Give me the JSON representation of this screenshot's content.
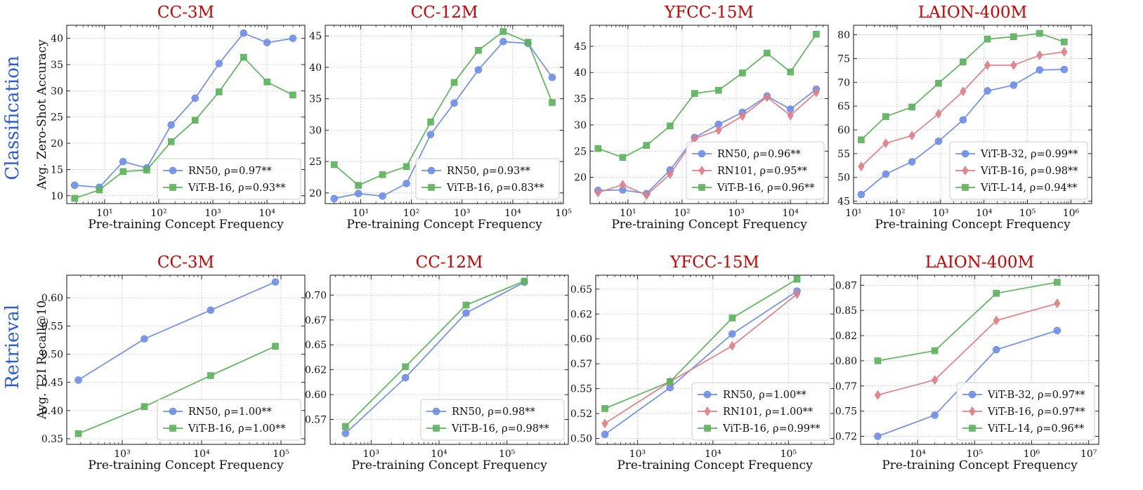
{
  "row_labels": [
    "Classification",
    "Retrieval"
  ],
  "legend_template": "{name}, ρ={rho}",
  "colors": {
    "RN50": "#6f8fe8",
    "RN101": "#df7f85",
    "ViT-B-16": "#5db35d",
    "ViT-B-32": "#6f8fe8",
    "ViT-B-16-red": "#df7f85",
    "ViT-L-14": "#5db35d",
    "title": "#cc0000",
    "row_label": "#2a5bd7"
  },
  "chart_data": [
    {
      "type": "line",
      "title": "CC-3M",
      "xlabel": "Pre-training Concept Frequency",
      "ylabel": "Avg. Zero-Shot Accuracy",
      "xscale": "log",
      "xlim": [
        2,
        50000
      ],
      "ylim": [
        8.5,
        42.5
      ],
      "yticks": [
        10,
        15,
        20,
        25,
        30,
        35,
        40
      ],
      "yticklabels": [
        "10",
        "15",
        "20",
        "25",
        "30",
        "35",
        "40"
      ],
      "xticks": [
        10,
        100,
        1000,
        10000
      ],
      "grid": true,
      "legend_loc": "lower-right",
      "series": [
        {
          "name": "RN50",
          "rho": "0.97**",
          "marker": "circle",
          "color": "#6f8fe8",
          "x": [
            2.8,
            8,
            22,
            60,
            170,
            470,
            1300,
            3700,
            10000,
            30000
          ],
          "y": [
            12.0,
            11.6,
            16.5,
            15.3,
            23.5,
            28.6,
            35.2,
            41.0,
            39.2,
            40.0
          ]
        },
        {
          "name": "ViT-B-16",
          "rho": "0.93**",
          "marker": "square",
          "color": "#5db35d",
          "x": [
            2.8,
            8,
            22,
            60,
            170,
            470,
            1300,
            3700,
            10000,
            30000
          ],
          "y": [
            9.5,
            11.1,
            14.6,
            14.9,
            20.3,
            24.4,
            29.8,
            36.4,
            31.7,
            29.2
          ]
        }
      ]
    },
    {
      "type": "line",
      "title": "CC-12M",
      "xlabel": "Pre-training Concept Frequency",
      "ylabel": "",
      "xscale": "log",
      "xlim": [
        2,
        100000
      ],
      "ylim": [
        18.3,
        46.7
      ],
      "yticks": [
        20,
        25,
        30,
        35,
        40,
        45
      ],
      "yticklabels": [
        "20",
        "25",
        "30",
        "35",
        "40",
        "45"
      ],
      "xticks": [
        10,
        100,
        1000,
        10000,
        100000
      ],
      "grid": true,
      "legend_loc": "lower-right",
      "series": [
        {
          "name": "RN50",
          "rho": "0.93**",
          "marker": "circle",
          "color": "#6f8fe8",
          "x": [
            3,
            9,
            27,
            80,
            240,
            700,
            2100,
            6500,
            20000,
            60000
          ],
          "y": [
            19.1,
            19.9,
            19.5,
            21.5,
            29.3,
            34.3,
            39.6,
            44.1,
            43.8,
            38.4
          ]
        },
        {
          "name": "ViT-B-16",
          "rho": "0.83**",
          "marker": "square",
          "color": "#5db35d",
          "x": [
            3,
            9,
            27,
            80,
            240,
            700,
            2100,
            6500,
            20000,
            60000
          ],
          "y": [
            24.5,
            21.2,
            22.9,
            24.2,
            31.3,
            37.6,
            42.7,
            45.7,
            44.0,
            34.4
          ]
        }
      ]
    },
    {
      "type": "line",
      "title": "YFCC-15M",
      "xlabel": "Pre-training Concept Frequency",
      "ylabel": "",
      "xscale": "log",
      "xlim": [
        2,
        50000
      ],
      "ylim": [
        15,
        49
      ],
      "yticks": [
        20,
        25,
        30,
        35,
        40,
        45
      ],
      "yticklabels": [
        "20",
        "25",
        "30",
        "35",
        "40",
        "45"
      ],
      "xticks": [
        10,
        100,
        1000,
        10000
      ],
      "grid": true,
      "legend_loc": "lower-right",
      "series": [
        {
          "name": "RN50",
          "rho": "0.96**",
          "marker": "circle",
          "color": "#6f8fe8",
          "x": [
            2.8,
            8,
            22,
            60,
            170,
            470,
            1300,
            3700,
            10000,
            30000
          ],
          "y": [
            17.5,
            17.6,
            16.9,
            21.4,
            27.6,
            30.1,
            32.4,
            35.5,
            33.0,
            36.8
          ]
        },
        {
          "name": "RN101",
          "rho": "0.95**",
          "marker": "diamond",
          "color": "#df7f85",
          "x": [
            2.8,
            8,
            22,
            60,
            170,
            470,
            1300,
            3700,
            10000,
            30000
          ],
          "y": [
            17.1,
            18.6,
            16.6,
            20.6,
            27.4,
            29.0,
            31.7,
            35.3,
            31.8,
            36.2
          ]
        },
        {
          "name": "ViT-B-16",
          "rho": "0.96**",
          "marker": "square",
          "color": "#5db35d",
          "x": [
            2.8,
            8,
            22,
            60,
            170,
            470,
            1300,
            3700,
            10000,
            30000
          ],
          "y": [
            25.5,
            23.8,
            26.1,
            29.8,
            36.0,
            36.6,
            39.9,
            43.7,
            40.1,
            47.3
          ]
        }
      ]
    },
    {
      "type": "line",
      "title": "LAION-400M",
      "xlabel": "Pre-training Concept Frequency",
      "ylabel": "",
      "xscale": "log",
      "xlim": [
        10,
        3000000
      ],
      "ylim": [
        44.5,
        82
      ],
      "yticks": [
        45,
        50,
        55,
        60,
        65,
        70,
        75,
        80
      ],
      "yticklabels": [
        "45",
        "50",
        "55",
        "60",
        "65",
        "70",
        "75",
        "80"
      ],
      "xticks": [
        10,
        100,
        1000,
        10000,
        100000,
        1000000
      ],
      "grid": true,
      "legend_loc": "lower-right",
      "series": [
        {
          "name": "ViT-B-32",
          "rho": "0.99**",
          "marker": "circle",
          "color": "#6f8fe8",
          "x": [
            15,
            55,
            220,
            900,
            3300,
            12000,
            48000,
            190000,
            700000
          ],
          "y": [
            46.4,
            50.7,
            53.3,
            57.6,
            62.1,
            68.2,
            69.4,
            72.6,
            72.7
          ]
        },
        {
          "name": "ViT-B-16",
          "rho": "0.98**",
          "marker": "diamond",
          "color": "#df7f85",
          "x": [
            15,
            55,
            220,
            900,
            3300,
            12000,
            48000,
            190000,
            700000
          ],
          "y": [
            52.3,
            57.2,
            58.8,
            63.4,
            68.1,
            73.6,
            73.6,
            75.7,
            76.4
          ]
        },
        {
          "name": "ViT-L-14",
          "rho": "0.94**",
          "marker": "square",
          "color": "#5db35d",
          "x": [
            15,
            55,
            220,
            900,
            3300,
            12000,
            48000,
            190000,
            700000
          ],
          "y": [
            57.9,
            62.8,
            64.8,
            69.8,
            74.3,
            79.1,
            79.6,
            80.3,
            78.5
          ]
        }
      ]
    },
    {
      "type": "line",
      "title": "CC-3M",
      "xlabel": "Pre-training Concept Frequency",
      "ylabel": "Avg. T2I Recall@10",
      "xscale": "log",
      "xlim": [
        200,
        200000
      ],
      "ylim": [
        0.34,
        0.64
      ],
      "yticks": [
        0.35,
        0.4,
        0.45,
        0.5,
        0.55,
        0.6
      ],
      "yticklabels": [
        "0.35",
        "0.40",
        "0.45",
        "0.50",
        "0.55",
        "0.60"
      ],
      "xticks": [
        1000,
        10000,
        100000
      ],
      "grid": true,
      "legend_loc": "lower-right",
      "series": [
        {
          "name": "RN50",
          "rho": "1.00**",
          "marker": "circle",
          "color": "#6f8fe8",
          "x": [
            280,
            1900,
            13000,
            85000
          ],
          "y": [
            0.454,
            0.527,
            0.578,
            0.628
          ]
        },
        {
          "name": "ViT-B-16",
          "rho": "1.00**",
          "marker": "square",
          "color": "#5db35d",
          "x": [
            280,
            1900,
            13000,
            85000
          ],
          "y": [
            0.359,
            0.407,
            0.462,
            0.514
          ]
        }
      ]
    },
    {
      "type": "line",
      "title": "CC-12M",
      "xlabel": "Pre-training Concept Frequency",
      "ylabel": "",
      "xscale": "log",
      "xlim": [
        250,
        800000
      ],
      "ylim": [
        0.55,
        0.72
      ],
      "yticks": [
        0.575,
        0.6,
        0.625,
        0.65,
        0.675,
        0.7
      ],
      "yticklabels": [
        "0.57",
        "0.60",
        "0.62",
        "0.65",
        "0.67",
        "0.70"
      ],
      "xticks": [
        1000,
        10000,
        100000
      ],
      "grid": true,
      "legend_loc": "lower-right",
      "series": [
        {
          "name": "RN50",
          "rho": "0.98**",
          "marker": "circle",
          "color": "#6f8fe8",
          "x": [
            420,
            3200,
            25000,
            180000
          ],
          "y": [
            0.561,
            0.617,
            0.682,
            0.713
          ]
        },
        {
          "name": "ViT-B-16",
          "rho": "0.98**",
          "marker": "square",
          "color": "#5db35d",
          "x": [
            420,
            3200,
            25000,
            180000
          ],
          "y": [
            0.568,
            0.628,
            0.69,
            0.714
          ]
        }
      ]
    },
    {
      "type": "line",
      "title": "YFCC-15M",
      "xlabel": "Pre-training Concept Frequency",
      "ylabel": "",
      "xscale": "log",
      "xlim": [
        280,
        400000
      ],
      "ylim": [
        0.494,
        0.664
      ],
      "yticks": [
        0.5,
        0.525,
        0.55,
        0.575,
        0.6,
        0.625,
        0.65
      ],
      "yticklabels": [
        "0.50",
        "0.52",
        "0.55",
        "0.57",
        "0.60",
        "0.62",
        "0.65"
      ],
      "xticks": [
        1000,
        10000,
        100000
      ],
      "grid": true,
      "legend_loc": "lower-right",
      "series": [
        {
          "name": "RN50",
          "rho": "1.00**",
          "marker": "circle",
          "color": "#6f8fe8",
          "x": [
            370,
            2700,
            18000,
            130000
          ],
          "y": [
            0.504,
            0.551,
            0.605,
            0.648
          ]
        },
        {
          "name": "RN101",
          "rho": "1.00**",
          "marker": "diamond",
          "color": "#df7f85",
          "x": [
            370,
            2700,
            18000,
            130000
          ],
          "y": [
            0.515,
            0.557,
            0.593,
            0.645
          ]
        },
        {
          "name": "ViT-B-16",
          "rho": "0.99**",
          "marker": "square",
          "color": "#5db35d",
          "x": [
            370,
            2700,
            18000,
            130000
          ],
          "y": [
            0.53,
            0.557,
            0.621,
            0.66
          ]
        }
      ]
    },
    {
      "type": "line",
      "title": "LAION-400M",
      "xlabel": "Pre-training Concept Frequency",
      "ylabel": "",
      "xscale": "log",
      "xlim": [
        1000,
        15000000
      ],
      "ylim": [
        0.717,
        0.885
      ],
      "yticks": [
        0.725,
        0.75,
        0.775,
        0.8,
        0.825,
        0.85,
        0.875
      ],
      "yticklabels": [
        "0.72",
        "0.75",
        "0.77",
        "0.80",
        "0.82",
        "0.85",
        "0.87"
      ],
      "xticks": [
        10000,
        100000,
        1000000,
        10000000
      ],
      "grid": true,
      "legend_loc": "lower-right",
      "series": [
        {
          "name": "ViT-B-32",
          "rho": "0.97**",
          "marker": "circle",
          "color": "#6f8fe8",
          "x": [
            2000,
            20000,
            240000,
            2800000
          ],
          "y": [
            0.725,
            0.746,
            0.811,
            0.83
          ]
        },
        {
          "name": "ViT-B-16",
          "rho": "0.97**",
          "marker": "diamond",
          "color": "#df7f85",
          "x": [
            2000,
            20000,
            240000,
            2800000
          ],
          "y": [
            0.766,
            0.781,
            0.84,
            0.857
          ]
        },
        {
          "name": "ViT-L-14",
          "rho": "0.96**",
          "marker": "square",
          "color": "#5db35d",
          "x": [
            2000,
            20000,
            240000,
            2800000
          ],
          "y": [
            0.8,
            0.81,
            0.867,
            0.878
          ]
        }
      ]
    }
  ]
}
